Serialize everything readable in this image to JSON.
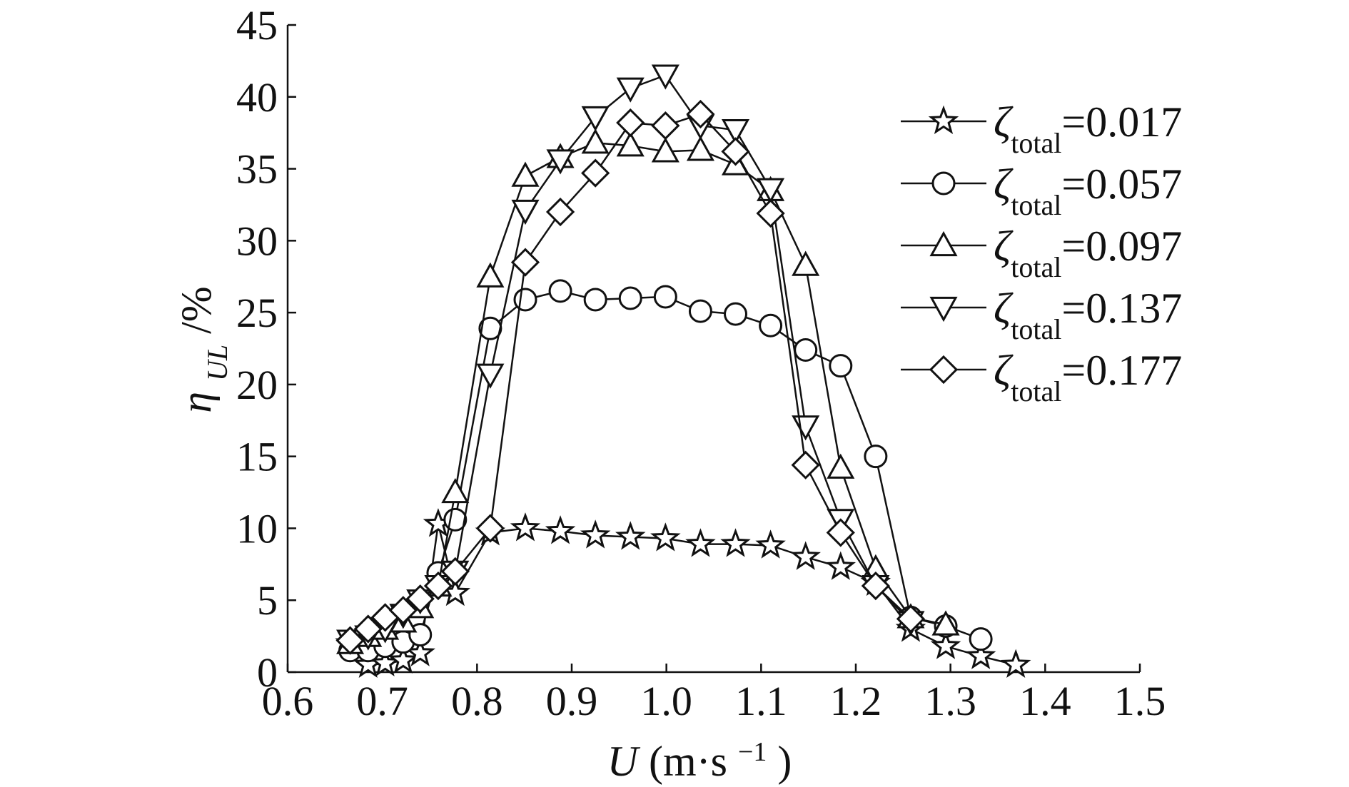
{
  "chart_data": {
    "type": "line",
    "title": "",
    "xlabel": {
      "var": "U",
      "unit": "(m·s",
      "exp": "−1",
      "close": ")"
    },
    "ylabel": {
      "var": "η",
      "sub": "UL",
      "unit": "/%"
    },
    "xlim": [
      0.6,
      1.5
    ],
    "ylim": [
      0,
      45
    ],
    "xticks": [
      "0.6",
      "0.7",
      "0.8",
      "0.9",
      "1.0",
      "1.1",
      "1.2",
      "1.3",
      "1.4",
      "1.5"
    ],
    "yticks": [
      "0",
      "5",
      "10",
      "15",
      "20",
      "25",
      "30",
      "35",
      "40",
      "45"
    ],
    "grid": false,
    "legend_position": "top-right",
    "legend_symbol": "ζ",
    "legend_subscript": "total",
    "series": [
      {
        "name": "=0.017",
        "marker": "star",
        "x": [
          0.666,
          0.685,
          0.703,
          0.722,
          0.74,
          0.759,
          0.777,
          0.814,
          0.851,
          0.888,
          0.925,
          0.962,
          0.999,
          1.036,
          1.073,
          1.11,
          1.147,
          1.184,
          1.221,
          1.258,
          1.295,
          1.332,
          1.369
        ],
        "y": [
          2.0,
          0.5,
          0.6,
          0.8,
          1.3,
          10.3,
          5.5,
          9.7,
          10.0,
          9.8,
          9.5,
          9.4,
          9.3,
          8.9,
          8.9,
          8.8,
          8.0,
          7.3,
          6.2,
          3.0,
          1.8,
          1.1,
          0.5
        ]
      },
      {
        "name": "=0.057",
        "marker": "circle",
        "x": [
          0.666,
          0.685,
          0.703,
          0.722,
          0.74,
          0.759,
          0.777,
          0.814,
          0.851,
          0.888,
          0.925,
          0.962,
          0.999,
          1.036,
          1.073,
          1.11,
          1.147,
          1.184,
          1.221,
          1.258,
          1.295,
          1.332
        ],
        "y": [
          1.5,
          1.5,
          1.8,
          2.1,
          2.6,
          6.9,
          10.6,
          23.9,
          25.9,
          26.5,
          25.9,
          26.0,
          26.1,
          25.1,
          24.9,
          24.1,
          22.4,
          21.3,
          15.0,
          3.8,
          3.2,
          2.3
        ]
      },
      {
        "name": "=0.097",
        "marker": "triangle-up",
        "x": [
          0.666,
          0.685,
          0.703,
          0.722,
          0.74,
          0.759,
          0.777,
          0.814,
          0.851,
          0.888,
          0.925,
          0.962,
          0.999,
          1.036,
          1.073,
          1.11,
          1.147,
          1.184,
          1.221,
          1.258,
          1.295
        ],
        "y": [
          2.0,
          2.5,
          3.0,
          3.5,
          4.5,
          6.0,
          12.5,
          27.5,
          34.5,
          35.8,
          36.8,
          36.6,
          36.2,
          36.3,
          35.3,
          33.5,
          28.3,
          14.2,
          7.2,
          3.8,
          3.3
        ]
      },
      {
        "name": "=0.137",
        "marker": "triangle-down",
        "x": [
          0.666,
          0.685,
          0.703,
          0.722,
          0.74,
          0.759,
          0.777,
          0.814,
          0.851,
          0.888,
          0.925,
          0.962,
          0.999,
          1.036,
          1.073,
          1.11,
          1.147,
          1.184,
          1.221,
          1.258
        ],
        "y": [
          2.2,
          2.5,
          3.0,
          4.0,
          5.0,
          6.0,
          7.0,
          20.7,
          32.1,
          35.6,
          38.6,
          40.6,
          41.5,
          38.0,
          37.7,
          33.6,
          17.1,
          10.6,
          6.0,
          3.5
        ]
      },
      {
        "name": "=0.177",
        "marker": "diamond",
        "x": [
          0.666,
          0.685,
          0.703,
          0.722,
          0.74,
          0.759,
          0.777,
          0.814,
          0.851,
          0.888,
          0.925,
          0.962,
          0.999,
          1.036,
          1.073,
          1.11,
          1.147,
          1.184,
          1.221,
          1.258
        ],
        "y": [
          2.2,
          3.0,
          3.8,
          4.3,
          5.1,
          6.0,
          7.0,
          10.0,
          28.5,
          32.0,
          34.7,
          38.2,
          38.0,
          38.8,
          36.2,
          31.9,
          14.4,
          9.7,
          6.0,
          3.7
        ]
      }
    ]
  }
}
